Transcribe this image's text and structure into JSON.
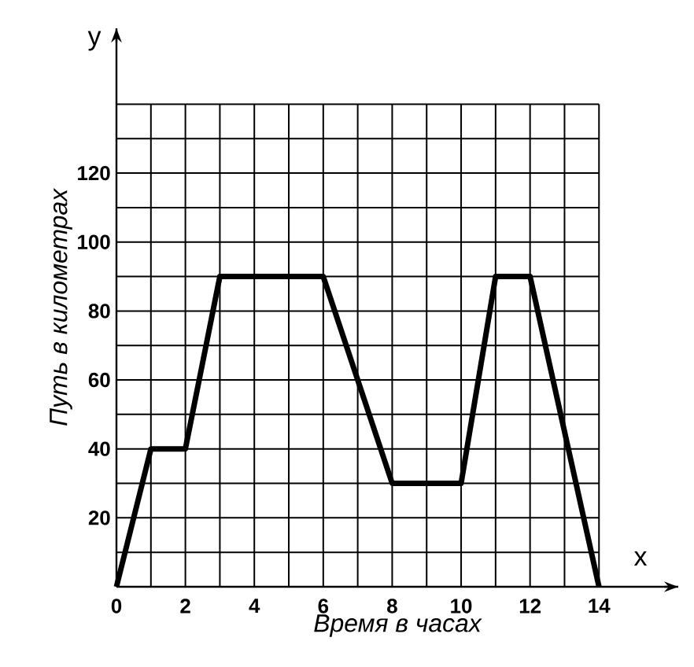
{
  "chart_data": {
    "type": "line",
    "xlabel": "Время в часах",
    "ylabel": "Путь в километрах",
    "annotations": [
      "x",
      "y"
    ],
    "x": [
      0,
      1,
      2,
      3,
      6,
      8,
      10,
      11,
      12,
      14
    ],
    "series": [
      {
        "color": "#000000",
        "values": [
          0,
          40,
          40,
          90,
          90,
          30,
          30,
          90,
          90,
          0
        ]
      }
    ],
    "xlim": [
      0,
      16.3
    ],
    "ylim": [
      0,
      162
    ],
    "xticks": [
      0,
      2,
      4,
      6,
      8,
      10,
      12,
      14
    ],
    "yticks": [
      {
        "value": 0,
        "label": null
      },
      20,
      40,
      60,
      80,
      100,
      120,
      {
        "value": 140,
        "label": null
      }
    ],
    "grid": true
  }
}
